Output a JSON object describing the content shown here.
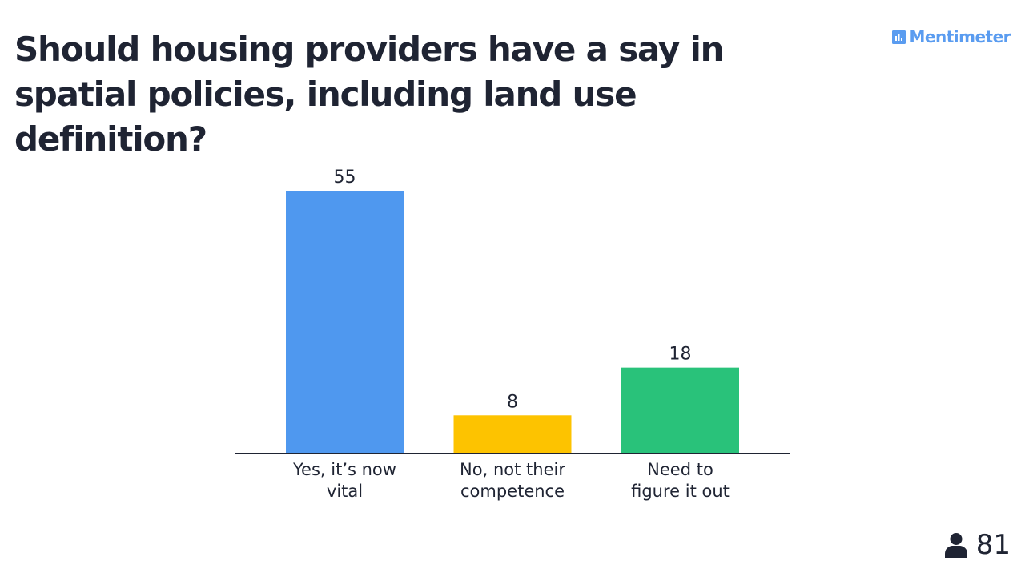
{
  "slide": {
    "title": "Should housing providers have a say in spatial policies, including land use definition?"
  },
  "brand": {
    "name": "Mentimeter",
    "logo_icon": "bar-chart-square-icon",
    "color": "#5a9cf0"
  },
  "responses": {
    "count": "81",
    "icon": "user-icon"
  },
  "chart_data": {
    "type": "bar",
    "categories": [
      [
        "Yes, it’s now",
        "vital"
      ],
      [
        "No, not their",
        "competence"
      ],
      [
        "Need to",
        "figure it out"
      ]
    ],
    "values": [
      55,
      8,
      18
    ],
    "colors": [
      "#4f98ef",
      "#fdc300",
      "#29c27a"
    ],
    "ylim": [
      0,
      55
    ],
    "grid": false,
    "legend": "none"
  }
}
